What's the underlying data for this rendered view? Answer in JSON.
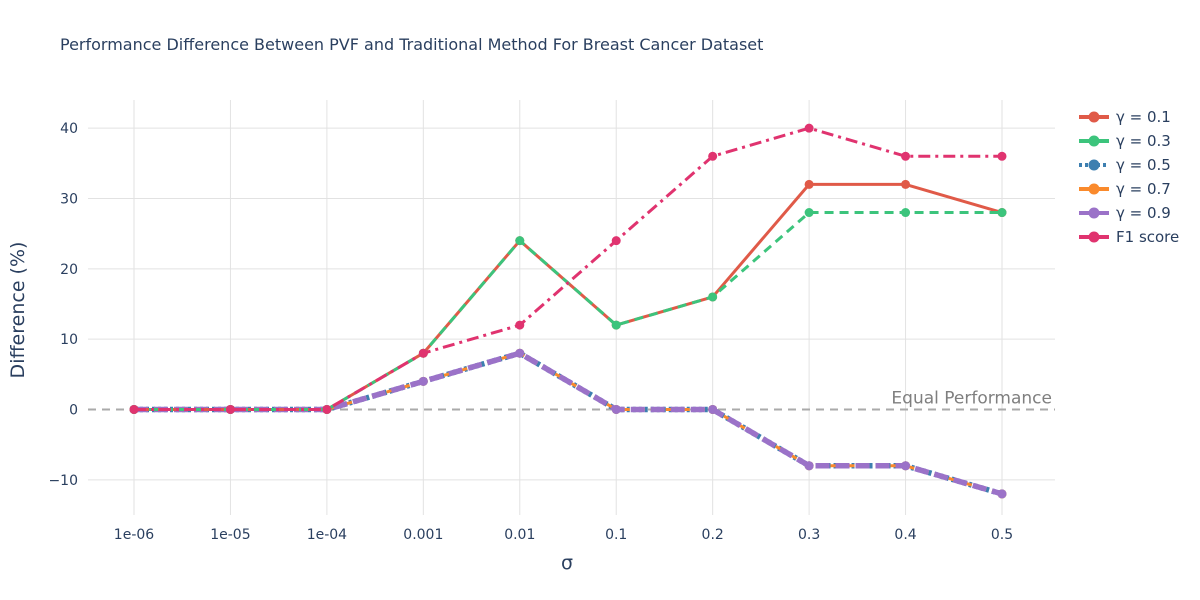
{
  "chart_data": {
    "type": "line",
    "title": "Performance Difference Between PVF and Traditional Method For Breast Cancer Dataset",
    "xlabel": "σ",
    "ylabel": "Difference (%)",
    "categories": [
      "1e-06",
      "1e-05",
      "1e-04",
      "0.001",
      "0.01",
      "0.1",
      "0.2",
      "0.3",
      "0.4",
      "0.5"
    ],
    "ylim": [
      -15,
      44
    ],
    "yticks": [
      -10,
      0,
      10,
      20,
      30,
      40
    ],
    "ytick_labels": [
      "−10",
      "0",
      "10",
      "20",
      "30",
      "40"
    ],
    "grid": true,
    "legend_position": "right",
    "reference_line": {
      "y": 0,
      "label": "Equal Performance",
      "color": "#aaaaaa"
    },
    "series": [
      {
        "name": "γ = 0.1",
        "color": "#e05a48",
        "dash": "solid",
        "values": [
          0,
          0,
          0,
          8,
          24,
          12,
          16,
          32,
          32,
          28
        ]
      },
      {
        "name": "γ = 0.3",
        "color": "#3cc47c",
        "dash": "dash",
        "values": [
          0,
          0,
          0,
          8,
          24,
          12,
          16,
          28,
          28,
          28
        ]
      },
      {
        "name": "γ = 0.5",
        "color": "#3d7fb0",
        "dash": "dot",
        "values": [
          0,
          0,
          0,
          4,
          8,
          0,
          0,
          -8,
          -8,
          -12
        ]
      },
      {
        "name": "γ = 0.7",
        "color": "#fa8a2c",
        "dash": "dash",
        "values": [
          0,
          0,
          0,
          4,
          8,
          0,
          0,
          -8,
          -8,
          -12
        ]
      },
      {
        "name": "γ = 0.9",
        "color": "#9b72c8",
        "dash": "longdash",
        "values": [
          0,
          0,
          0,
          4,
          8,
          0,
          0,
          -8,
          -8,
          -12
        ]
      },
      {
        "name": "F1 score",
        "color": "#e0336f",
        "dash": "dashdot",
        "values": [
          0,
          0,
          0,
          8,
          12,
          24,
          36,
          40,
          36,
          36
        ]
      }
    ]
  }
}
